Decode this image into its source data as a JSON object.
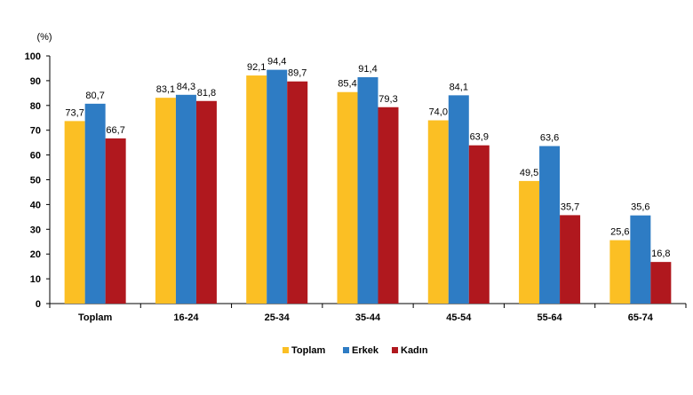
{
  "chart_data": {
    "type": "bar",
    "title": "",
    "xlabel": "",
    "ylabel": "(%)",
    "ylim": [
      0,
      100
    ],
    "ytick_step": 10,
    "grid": false,
    "legend_position": "bottom-center",
    "categories": [
      "Toplam",
      "16-24",
      "25-34",
      "35-44",
      "45-54",
      "55-64",
      "65-74"
    ],
    "series": [
      {
        "name": "Toplam",
        "color": "#FBBF24",
        "values": [
          73.7,
          83.1,
          92.1,
          85.4,
          74.0,
          49.5,
          25.6
        ],
        "labels": [
          "73,7",
          "83,1",
          "92,1",
          "85,4",
          "74,0",
          "49,5",
          "25,6"
        ]
      },
      {
        "name": "Erkek",
        "color": "#2E7CC4",
        "values": [
          80.7,
          84.3,
          94.4,
          91.4,
          84.1,
          63.6,
          35.6
        ],
        "labels": [
          "80,7",
          "84,3",
          "94,4",
          "91,4",
          "84,1",
          "63,6",
          "35,6"
        ]
      },
      {
        "name": "Kadın",
        "color": "#B0181E",
        "values": [
          66.7,
          81.8,
          89.7,
          79.3,
          63.9,
          35.7,
          16.8
        ],
        "labels": [
          "66,7",
          "81,8",
          "89,7",
          "79,3",
          "63,9",
          "35,7",
          "16,8"
        ]
      }
    ]
  }
}
